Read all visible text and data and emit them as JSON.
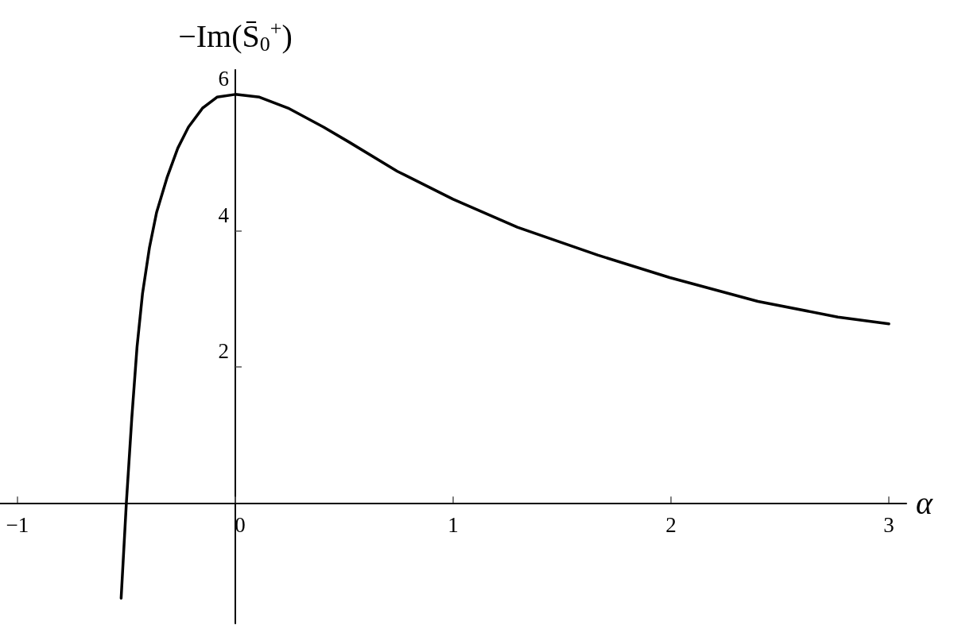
{
  "chart_data": {
    "type": "line",
    "xlabel": "α",
    "ylabel": "−Im(S̄$_{0}$$^{+}$)",
    "x": [
      -0.524,
      -0.5,
      -0.475,
      -0.451,
      -0.426,
      -0.394,
      -0.361,
      -0.312,
      -0.264,
      -0.215,
      -0.15,
      -0.084,
      0,
      0.111,
      0.242,
      0.405,
      0.522,
      0.744,
      1.0,
      1.295,
      1.663,
      1.994,
      2.399,
      2.766,
      3.0
    ],
    "series": [
      {
        "color": "#000000",
        "values": [
          -1.4,
          0,
          1.25,
          2.29,
          3.07,
          3.75,
          4.27,
          4.79,
          5.21,
          5.52,
          5.8,
          5.96,
          6.0,
          5.96,
          5.8,
          5.52,
          5.3,
          4.87,
          4.46,
          4.05,
          3.64,
          3.31,
          2.96,
          2.73,
          2.63
        ]
      }
    ],
    "xlim": [
      -1.08,
      3.08
    ],
    "ylim": [
      -1.77,
      6.36
    ],
    "xticks": [
      -1,
      0,
      1,
      2,
      3
    ],
    "yticks": [
      2,
      4,
      6
    ],
    "marker": "none",
    "line_style": "solid"
  }
}
